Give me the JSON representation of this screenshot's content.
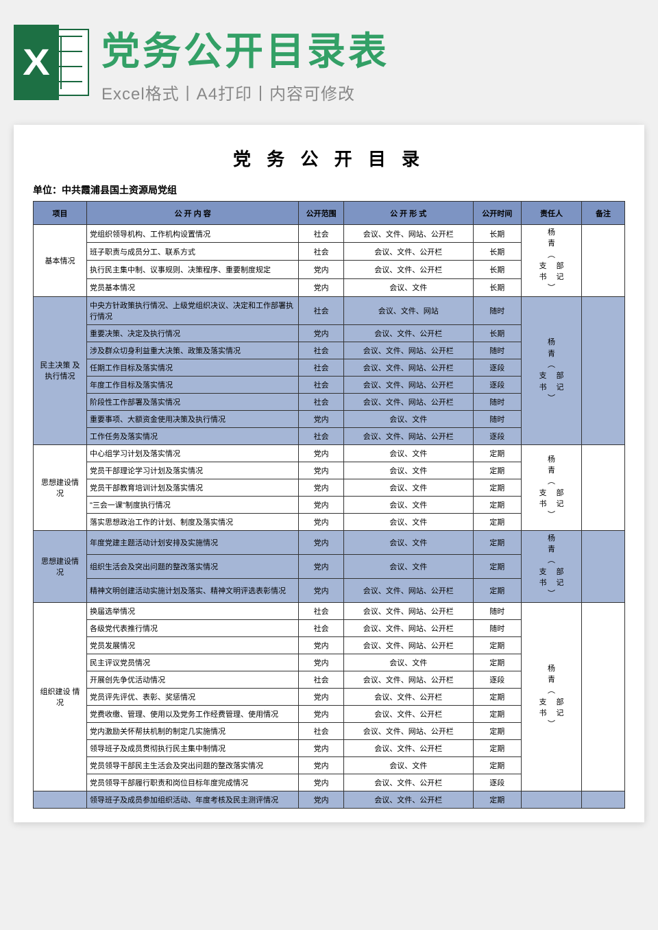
{
  "colors": {
    "accent_green": "#33a066",
    "excel_dark": "#1d7044",
    "header_blue": "#7d94c3",
    "row_alt_blue": "#a5b6d6",
    "border": "#333333",
    "page_bg": "#f0f0f0",
    "sub_gray": "#888888"
  },
  "banner": {
    "title": "党务公开目录表",
    "subtitle": "Excel格式丨A4打印丨内容可修改"
  },
  "doc": {
    "title": "党 务 公 开 目 录",
    "unit_label": "单位：中共霞浦县国土资源局党组"
  },
  "columns": {
    "project": "项目",
    "content": "公 开 内 容",
    "scope": "公开范围",
    "form": "公 开 形 式",
    "time": "公开时间",
    "owner": "责任人",
    "note": "备注"
  },
  "responsible_block": {
    "line1": "杨",
    "line2": "青",
    "line3": "︵",
    "left1": "支",
    "right1": "部",
    "left2": "书",
    "right2": "记",
    "line6": "︶"
  },
  "sections": [
    {
      "name": "基本情况",
      "alt": false,
      "rows": [
        {
          "content": "党组织领导机构、工作机构设置情况",
          "scope": "社会",
          "form": "会议、文件、网站、公开栏",
          "time": "长期"
        },
        {
          "content": "班子职责与成员分工、联系方式",
          "scope": "社会",
          "form": "会议、文件、公开栏",
          "time": "长期"
        },
        {
          "content": "执行民主集中制、议事规则、决策程序、重要制度规定",
          "scope": "党内",
          "form": "会议、文件、公开栏",
          "time": "长期"
        },
        {
          "content": "党员基本情况",
          "scope": "党内",
          "form": "会议、文件",
          "time": "长期"
        }
      ]
    },
    {
      "name": "民主决策 及执行情况",
      "alt": true,
      "rows": [
        {
          "content": "中央方针政策执行情况、上级党组织决议、决定和工作部署执行情况",
          "scope": "社会",
          "form": "会议、文件、网站",
          "time": "随时"
        },
        {
          "content": "重要决策、决定及执行情况",
          "scope": "党内",
          "form": "会议、文件、公开栏",
          "time": "长期"
        },
        {
          "content": "涉及群众切身利益重大决策、政策及落实情况",
          "scope": "社会",
          "form": "会议、文件、网站、公开栏",
          "time": "随时"
        },
        {
          "content": "任期工作目标及落实情况",
          "scope": "社会",
          "form": "会议、文件、网站、公开栏",
          "time": "逐段"
        },
        {
          "content": "年度工作目标及落实情况",
          "scope": "社会",
          "form": "会议、文件、网站、公开栏",
          "time": "逐段"
        },
        {
          "content": "阶段性工作部署及落实情况",
          "scope": "社会",
          "form": "会议、文件、网站、公开栏",
          "time": "随时"
        },
        {
          "content": "重要事项、大额资金使用决策及执行情况",
          "scope": "党内",
          "form": "会议、文件",
          "time": "随时"
        },
        {
          "content": "工作任务及落实情况",
          "scope": "社会",
          "form": "会议、文件、网站、公开栏",
          "time": "逐段"
        }
      ]
    },
    {
      "name": "思想建设情 况",
      "alt": false,
      "rows": [
        {
          "content": "中心组学习计划及落实情况",
          "scope": "党内",
          "form": "会议、文件",
          "time": "定期"
        },
        {
          "content": "党员干部理论学习计划及落实情况",
          "scope": "党内",
          "form": "会议、文件",
          "time": "定期"
        },
        {
          "content": "党员干部教育培训计划及落实情况",
          "scope": "党内",
          "form": "会议、文件",
          "time": "定期"
        },
        {
          "content": "\"三会一课\"制度执行情况",
          "scope": "党内",
          "form": "会议、文件",
          "time": "定期"
        },
        {
          "content": "落实思想政治工作的计划、制度及落实情况",
          "scope": "党内",
          "form": "会议、文件",
          "time": "定期"
        }
      ]
    },
    {
      "name": "思想建设情 况",
      "alt": true,
      "rows": [
        {
          "content": "年度党建主题活动计划安排及实施情况",
          "scope": "党内",
          "form": "会议、文件",
          "time": "定期"
        },
        {
          "content": "组织生活会及突出问题的整改落实情况",
          "scope": "党内",
          "form": "会议、文件",
          "time": "定期"
        },
        {
          "content": "精神文明创建活动实施计划及落实、精神文明评选表彰情况",
          "scope": "党内",
          "form": "会议、文件、网站、公开栏",
          "time": "定期"
        }
      ]
    },
    {
      "name": "组织建设 情况",
      "alt": false,
      "rows": [
        {
          "content": "换届选举情况",
          "scope": "社会",
          "form": "会议、文件、网站、公开栏",
          "time": "随时"
        },
        {
          "content": "各级党代表推行情况",
          "scope": "社会",
          "form": "会议、文件、网站、公开栏",
          "time": "随时"
        },
        {
          "content": "党员发展情况",
          "scope": "党内",
          "form": "会议、文件、网站、公开栏",
          "time": "定期"
        },
        {
          "content": "民主评议党员情况",
          "scope": "党内",
          "form": "会议、文件",
          "time": "定期"
        },
        {
          "content": "开展创先争优活动情况",
          "scope": "社会",
          "form": "会议、文件、网站、公开栏",
          "time": "逐段"
        },
        {
          "content": "党员评先评优、表彰、奖惩情况",
          "scope": "党内",
          "form": "会议、文件、公开栏",
          "time": "定期"
        },
        {
          "content": "党费收缴、管理、使用以及党务工作经费管理、使用情况",
          "scope": "党内",
          "form": "会议、文件、公开栏",
          "time": "定期"
        },
        {
          "content": "党内激励关怀帮扶机制的制定几实施情况",
          "scope": "社会",
          "form": "会议、文件、网站、公开栏",
          "time": "定期"
        },
        {
          "content": "领导班子及成员贯彻执行民主集中制情况",
          "scope": "党内",
          "form": "会议、文件、公开栏",
          "time": "定期"
        },
        {
          "content": "党员领导干部民主生活会及突出问题的整改落实情况",
          "scope": "党内",
          "form": "会议、文件",
          "time": "定期"
        },
        {
          "content": "党员领导干部履行职责和岗位目标年度完成情况",
          "scope": "党内",
          "form": "会议、文件、公开栏",
          "time": "逐段"
        }
      ]
    },
    {
      "name": "",
      "alt": true,
      "no_owner": true,
      "rows": [
        {
          "content": "领导班子及成员参加组织活动、年度考核及民主测评情况",
          "scope": "党内",
          "form": "会议、文件、公开栏",
          "time": "定期"
        }
      ]
    }
  ]
}
